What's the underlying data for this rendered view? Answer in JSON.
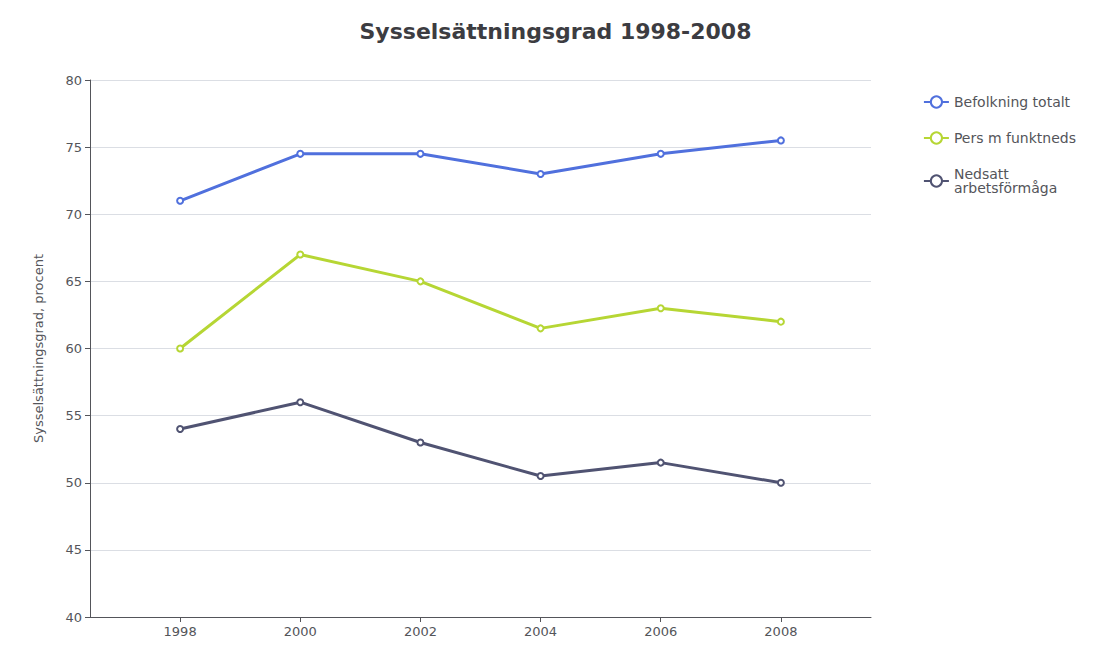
{
  "chart_data": {
    "type": "line",
    "title": "Sysselsättningsgrad 1998-2008",
    "ylabel": "Sysselsättningsgrad, procent",
    "x": [
      1998,
      2000,
      2002,
      2004,
      2006,
      2008
    ],
    "series": [
      {
        "name": "Befolkning totalt",
        "values": [
          71.0,
          74.5,
          74.5,
          73.0,
          74.5,
          75.5
        ]
      },
      {
        "name": "Pers m funktneds",
        "values": [
          60.0,
          67.0,
          65.0,
          61.5,
          63.0,
          62.0
        ]
      },
      {
        "name": "Nedsatt\narbetsförmåga",
        "values": [
          54.0,
          56.0,
          53.0,
          50.5,
          51.5,
          50.0
        ]
      }
    ],
    "xlim": [
      1996.5,
      2009.5
    ],
    "xticks": [
      1998,
      2000,
      2002,
      2004,
      2006,
      2008
    ],
    "ylim": [
      40,
      80
    ],
    "yticks": [
      40,
      45,
      50,
      55,
      60,
      65,
      70,
      75,
      80
    ],
    "grid": "y",
    "legend": "right"
  }
}
